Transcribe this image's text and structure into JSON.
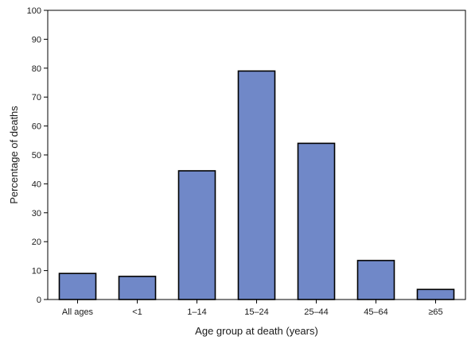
{
  "chart_data": {
    "type": "bar",
    "title": "",
    "xlabel": "Age group at death (years)",
    "ylabel": "Percentage of deaths",
    "categories": [
      "All ages",
      "<1",
      "1–14",
      "15–24",
      "25–44",
      "45–64",
      "≥65"
    ],
    "values": [
      9,
      8,
      44.5,
      79,
      54,
      13.5,
      3.5
    ],
    "ylim": [
      0,
      100
    ],
    "yticks": [
      0,
      10,
      20,
      30,
      40,
      50,
      60,
      70,
      80,
      90,
      100
    ],
    "grid": false,
    "legend": "none",
    "colors": {
      "bar_fill": "#7088c8",
      "bar_stroke": "#000000",
      "axis": "#000000"
    }
  }
}
